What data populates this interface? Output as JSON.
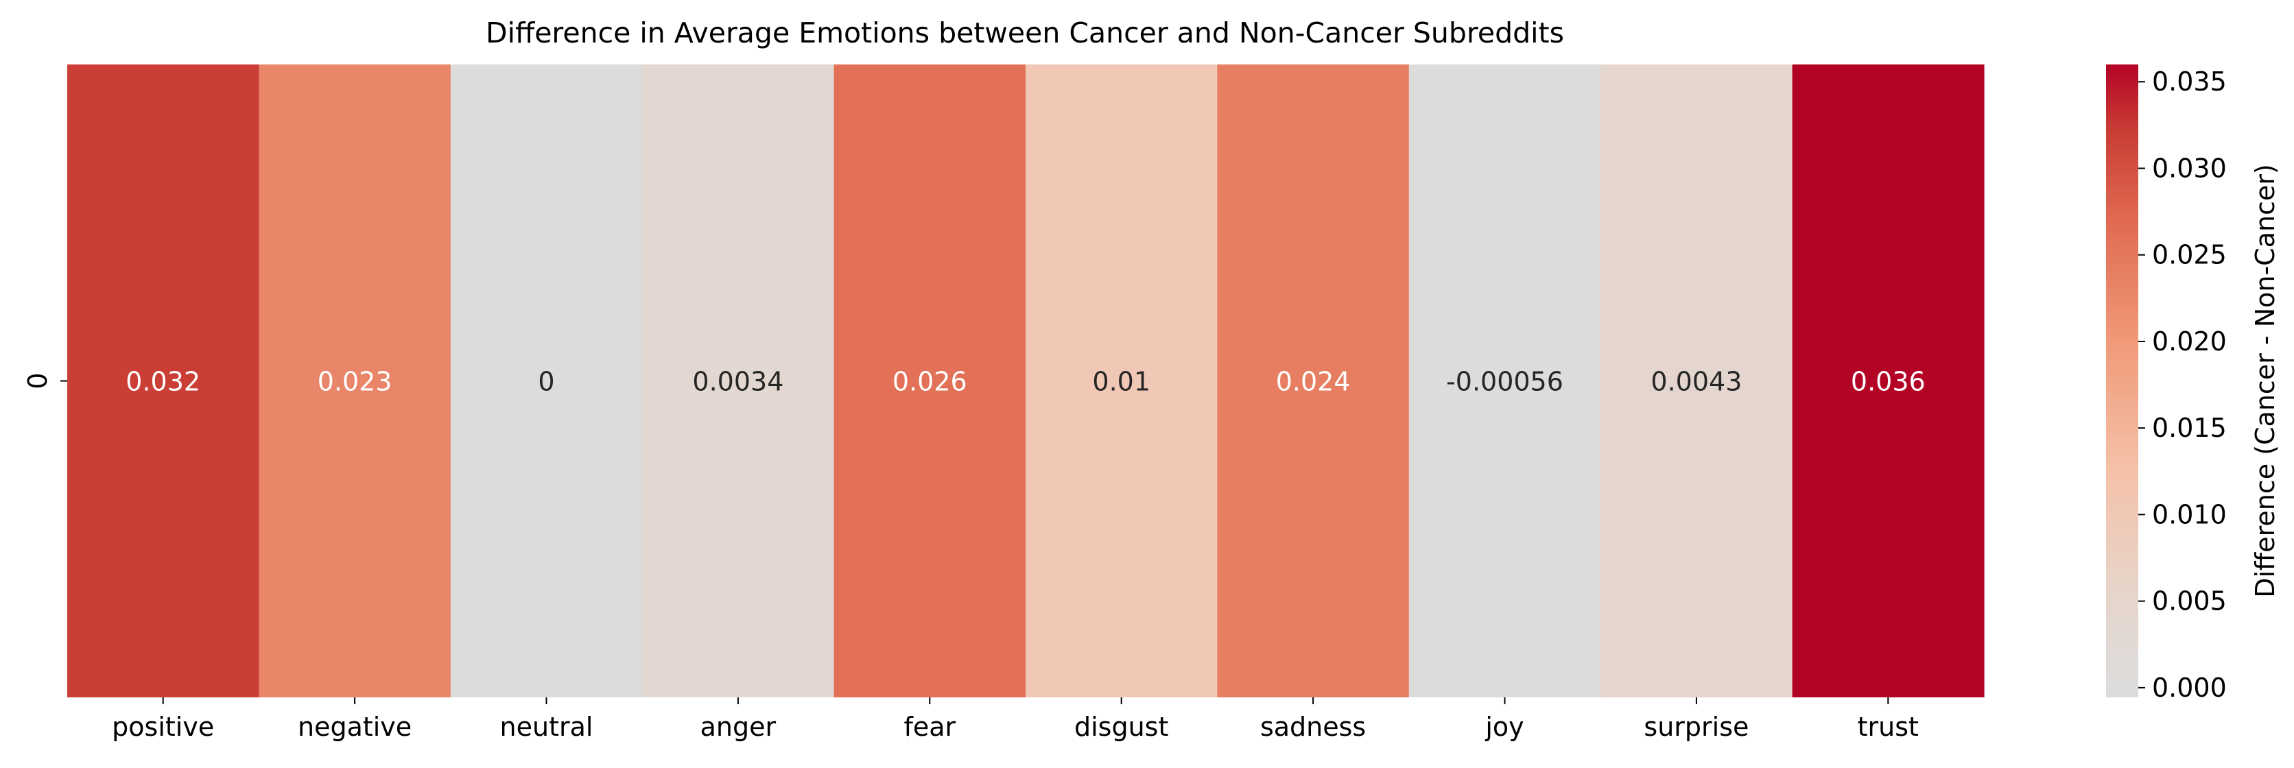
{
  "chart_data": {
    "type": "heatmap",
    "title": "Difference in Average Emotions between Cancer and Non-Cancer Subreddits",
    "xlabel": "",
    "ylabel": "",
    "rows": [
      "0"
    ],
    "categories": [
      "positive",
      "negative",
      "neutral",
      "anger",
      "fear",
      "disgust",
      "sadness",
      "joy",
      "surprise",
      "trust"
    ],
    "values": [
      [
        0.032,
        0.023,
        0,
        0.0034,
        0.026,
        0.01,
        0.024,
        -0.00056,
        0.0043,
        0.036
      ]
    ],
    "cell_labels": [
      [
        "0.032",
        "0.023",
        "0",
        "0.0034",
        "0.026",
        "0.01",
        "0.024",
        "-0.00056",
        "0.0043",
        "0.036"
      ]
    ],
    "colorbar": {
      "label": "Difference (Cancer - Non-Cancer)",
      "range": [
        -0.00056,
        0.036
      ],
      "ticks": [
        0.0,
        0.005,
        0.01,
        0.015,
        0.02,
        0.025,
        0.03,
        0.035
      ],
      "tick_labels": [
        "0.000",
        "0.005",
        "0.010",
        "0.015",
        "0.020",
        "0.025",
        "0.030",
        "0.035"
      ],
      "colormap": "coolwarm (upper half, centered at 0)",
      "center": 0
    },
    "colors": {
      "zero": "#dddcdc",
      "max": "#b40426",
      "text_dark": "#262626",
      "text_light": "#ffffff"
    }
  }
}
